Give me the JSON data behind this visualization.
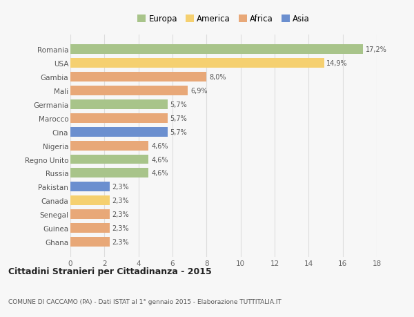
{
  "categories": [
    "Romania",
    "USA",
    "Gambia",
    "Mali",
    "Germania",
    "Marocco",
    "Cina",
    "Nigeria",
    "Regno Unito",
    "Russia",
    "Pakistan",
    "Canada",
    "Senegal",
    "Guinea",
    "Ghana"
  ],
  "values": [
    17.2,
    14.9,
    8.0,
    6.9,
    5.7,
    5.7,
    5.7,
    4.6,
    4.6,
    4.6,
    2.3,
    2.3,
    2.3,
    2.3,
    2.3
  ],
  "labels": [
    "17,2%",
    "14,9%",
    "8,0%",
    "6,9%",
    "5,7%",
    "5,7%",
    "5,7%",
    "4,6%",
    "4,6%",
    "4,6%",
    "2,3%",
    "2,3%",
    "2,3%",
    "2,3%",
    "2,3%"
  ],
  "continents": [
    "Europa",
    "America",
    "Africa",
    "Africa",
    "Europa",
    "Africa",
    "Asia",
    "Africa",
    "Europa",
    "Europa",
    "Asia",
    "America",
    "Africa",
    "Africa",
    "Africa"
  ],
  "colors": {
    "Europa": "#a8c48a",
    "America": "#f5d070",
    "Africa": "#e8a878",
    "Asia": "#6b8fcf"
  },
  "legend_order": [
    "Europa",
    "America",
    "Africa",
    "Asia"
  ],
  "title1": "Cittadini Stranieri per Cittadinanza - 2015",
  "title2": "COMUNE DI CACCAMO (PA) - Dati ISTAT al 1° gennaio 2015 - Elaborazione TUTTITALIA.IT",
  "xlim": [
    0,
    18
  ],
  "xticks": [
    0,
    2,
    4,
    6,
    8,
    10,
    12,
    14,
    16,
    18
  ],
  "bg_color": "#f7f7f7",
  "grid_color": "#dddddd"
}
